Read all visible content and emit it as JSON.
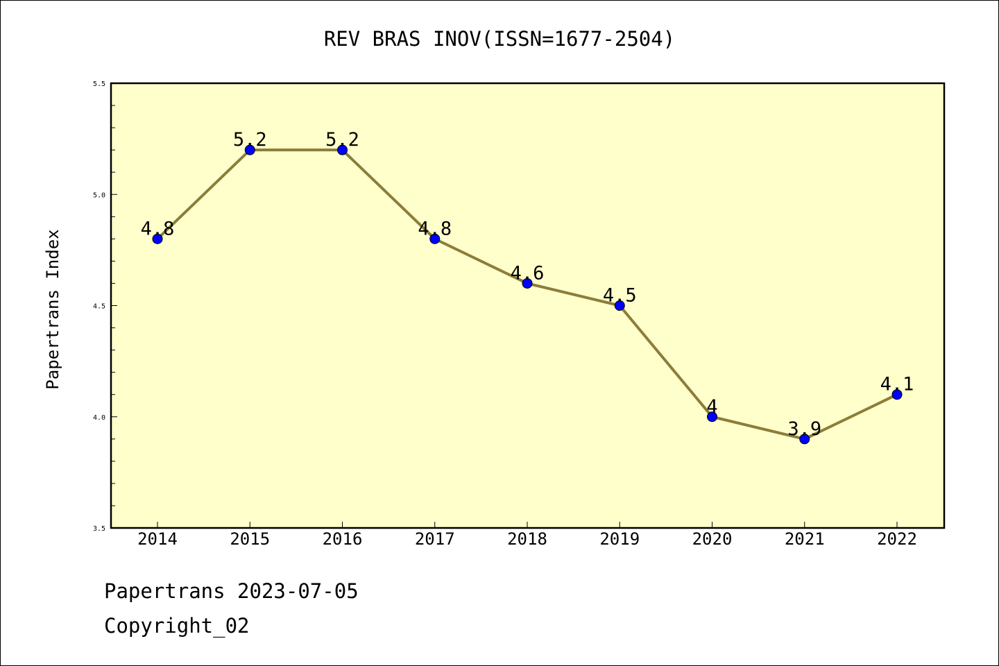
{
  "chart_data": {
    "type": "line",
    "title": "REV BRAS INOV(ISSN=1677-2504)",
    "ylabel": "Papertrans Index",
    "xlabel": "",
    "categories": [
      "2014",
      "2015",
      "2016",
      "2017",
      "2018",
      "2019",
      "2020",
      "2021",
      "2022"
    ],
    "series": [
      {
        "values": [
          4.8,
          5.2,
          5.2,
          4.8,
          4.6,
          4.5,
          4.0,
          3.9,
          4.1
        ],
        "labels": [
          "4.8",
          "5.2",
          "5.2",
          "4.8",
          "4.6",
          "4.5",
          "4",
          "3.9",
          "4.1"
        ]
      }
    ],
    "ylim": [
      3.5,
      5.5
    ],
    "yticks": [
      "3.5",
      "4.0",
      "4.5",
      "5.0",
      "5.5"
    ],
    "grid": false,
    "colors": {
      "plot_background": "#FFFFCC",
      "line": "#8B7D3A",
      "marker": "#0000FF"
    }
  },
  "footer": {
    "date_line": "Papertrans 2023-07-05",
    "copyright": "Copyright_02"
  }
}
